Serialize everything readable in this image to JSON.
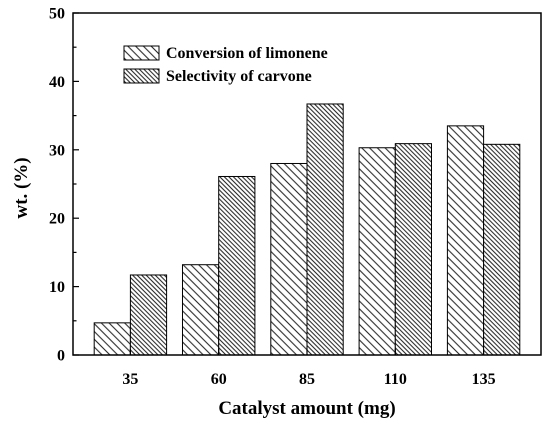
{
  "chart_data": {
    "type": "bar",
    "categories": [
      "35",
      "60",
      "85",
      "110",
      "135"
    ],
    "series": [
      {
        "name": "Conversion of limonene",
        "values": [
          4.7,
          13.2,
          28.0,
          30.3,
          33.5
        ]
      },
      {
        "name": "Selectivity of carvone",
        "values": [
          11.7,
          26.1,
          36.7,
          30.9,
          30.8
        ]
      }
    ],
    "xlabel": "Catalyst amount (mg)",
    "ylabel": "wt. (%)",
    "ylim": [
      0,
      50
    ],
    "yticks": [
      0,
      10,
      20,
      30,
      40,
      50
    ],
    "grid": false,
    "legend": "top-left",
    "colors": {
      "outline": "#000000",
      "fill": "#ffffff"
    }
  }
}
